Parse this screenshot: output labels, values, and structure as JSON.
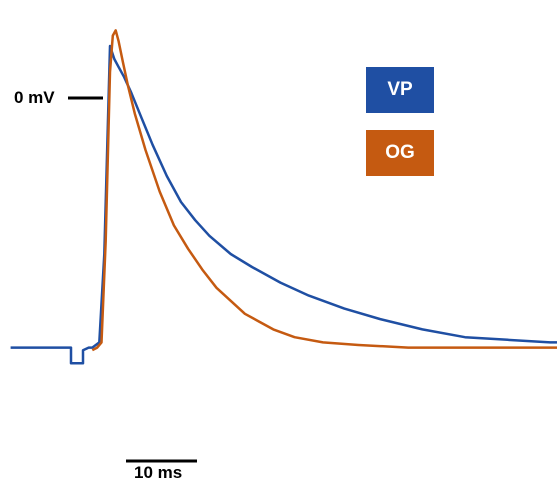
{
  "chart_data": {
    "type": "line",
    "title": "",
    "xlabel": "",
    "ylabel": "",
    "scale_bars": {
      "voltage_marker": "0 mV",
      "time_bar": "10 ms",
      "time_bar_ms": 10
    },
    "x_unit": "ms",
    "y_unit": "mV",
    "y_reference_mV": 0,
    "xlim": [
      -14,
      76
    ],
    "grid": false,
    "legend_position": "top-right",
    "series": [
      {
        "name": "VP",
        "color": "#1f4fa3",
        "x": [
          -14,
          -5.5,
          -5.5,
          -3.8,
          -3.8,
          -3.0,
          -2.5,
          -1.5,
          -0.8,
          0.0,
          0.6,
          1.2,
          2.0,
          3.0,
          4.5,
          6.0,
          8.0,
          10.0,
          12.0,
          14.0,
          17.0,
          20.0,
          24.0,
          28.0,
          33.0,
          38.0,
          44.0,
          50.0,
          56.0,
          62.0,
          68.0
        ],
        "y": [
          -96,
          -96,
          -102,
          -102,
          -97,
          -96,
          -96,
          -94,
          -60,
          20,
          15,
          12,
          8,
          2,
          -8,
          -18,
          -30,
          -40,
          -47,
          -53,
          -60,
          -65,
          -71,
          -76,
          -81,
          -85,
          -89,
          -92,
          -93,
          -94,
          -94
        ]
      },
      {
        "name": "OG",
        "color": "#c55a11",
        "x": [
          -2.5,
          -1.8,
          -1.2,
          -0.6,
          0.0,
          0.4,
          0.8,
          1.2,
          1.8,
          2.5,
          3.5,
          5.0,
          7.0,
          9.0,
          11.0,
          13.0,
          15.0,
          17.0,
          19.0,
          21.0,
          23.0,
          26.0,
          30.0,
          35.0,
          42.0,
          50.0,
          60.0,
          70.0,
          76.0
        ],
        "y": [
          -97,
          -96,
          -94,
          -55,
          10,
          24,
          26,
          22,
          14,
          5,
          -6,
          -20,
          -36,
          -49,
          -58,
          -66,
          -73,
          -78,
          -83,
          -86,
          -89,
          -92,
          -94,
          -95,
          -96,
          -96,
          -96,
          -96,
          -96
        ]
      }
    ]
  }
}
